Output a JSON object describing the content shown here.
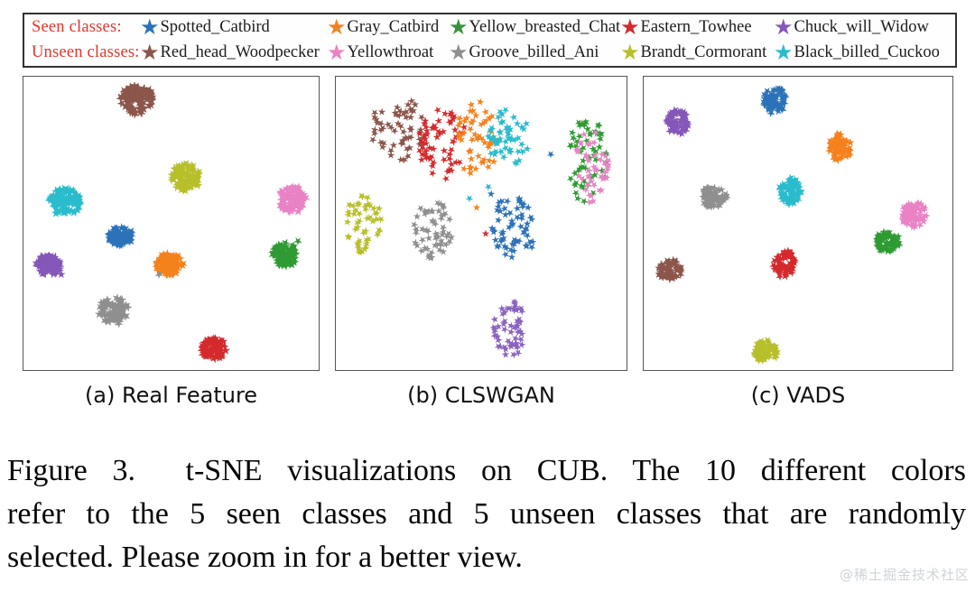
{
  "legend": {
    "label_color": "#e63329",
    "rows": [
      {
        "label": "Seen classes:",
        "entries": [
          {
            "name": "Spotted_Catbird",
            "color": "#2c72b8"
          },
          {
            "name": "Gray_Catbird",
            "color": "#f5811d"
          },
          {
            "name": "Yellow_breasted_Chat",
            "color": "#3a933a"
          },
          {
            "name": "Eastern_Towhee",
            "color": "#d42a2d"
          },
          {
            "name": "Chuck_will_Widow",
            "color": "#8557b8"
          }
        ]
      },
      {
        "label": "Unseen classes:",
        "entries": [
          {
            "name": "Red_head_Woodpecker",
            "color": "#8c564b"
          },
          {
            "name": "Yellowthroat",
            "color": "#e983c5"
          },
          {
            "name": "Groove_billed_Ani",
            "color": "#8f8f8f"
          },
          {
            "name": "Brandt_Cormorant",
            "color": "#b7bf2b"
          },
          {
            "name": "Black_billed_Cuckoo",
            "color": "#2abccd"
          }
        ]
      }
    ]
  },
  "chart_data": [
    {
      "type": "scatter",
      "title": "(a) Real Feature",
      "style": "dense-blobs",
      "clusters": [
        {
          "class": "Red_head_Woodpecker",
          "color": "#8c564b",
          "cx": 38.5,
          "cy": 8.0,
          "rx": 5.8,
          "ry": 5.0,
          "n": 95,
          "size": 13
        },
        {
          "class": "Brandt_Cormorant",
          "color": "#b7bf2b",
          "cx": 55.0,
          "cy": 34.5,
          "rx": 5.0,
          "ry": 4.7,
          "n": 85,
          "size": 13
        },
        {
          "class": "Black_billed_Cuckoo",
          "color": "#2abccd",
          "cx": 14.0,
          "cy": 43.0,
          "rx": 5.4,
          "ry": 4.6,
          "n": 85,
          "size": 13
        },
        {
          "class": "Yellowthroat",
          "color": "#e983c5",
          "cx": 91.0,
          "cy": 42.0,
          "rx": 4.7,
          "ry": 4.5,
          "n": 80,
          "size": 13
        },
        {
          "class": "Spotted_Catbird",
          "color": "#2c72b8",
          "cx": 33.0,
          "cy": 54.5,
          "rx": 4.2,
          "ry": 3.2,
          "n": 70,
          "size": 13
        },
        {
          "class": "Chuck_will_Widow",
          "color": "#8557b8",
          "cx": 8.5,
          "cy": 64.5,
          "rx": 4.2,
          "ry": 3.5,
          "n": 70,
          "size": 13
        },
        {
          "class": "Gray_Catbird",
          "color": "#f5811d",
          "cx": 49.5,
          "cy": 64.0,
          "rx": 4.6,
          "ry": 3.9,
          "n": 80,
          "size": 13
        },
        {
          "class": "Yellow_breasted_Chat",
          "color": "#2f9b33",
          "cx": 88.5,
          "cy": 61.0,
          "rx": 4.3,
          "ry": 4.0,
          "n": 75,
          "size": 13
        },
        {
          "class": "Groove_billed_Ani",
          "color": "#8f8f8f",
          "cx": 30.5,
          "cy": 80.0,
          "rx": 5.0,
          "ry": 4.5,
          "n": 80,
          "size": 13
        },
        {
          "class": "Eastern_Towhee",
          "color": "#d42a2d",
          "cx": 64.5,
          "cy": 93.0,
          "rx": 4.2,
          "ry": 3.8,
          "n": 75,
          "size": 13
        }
      ],
      "outliers": [
        {
          "class": "Groove_billed_Ani",
          "color": "#8f8f8f",
          "x": 46.0,
          "y": 67.5,
          "size": 12
        },
        {
          "class": "Chuck_will_Widow",
          "color": "#8557b8",
          "x": 12.8,
          "y": 67.5,
          "size": 12
        },
        {
          "class": "Yellow_breasted_Chat",
          "color": "#2f9b33",
          "x": 93.0,
          "y": 56.0,
          "size": 12
        }
      ]
    },
    {
      "type": "scatter",
      "title": "(b) CLSWGAN",
      "style": "loose-scatter",
      "clusters": [
        {
          "class": "Red_head_Woodpecker",
          "color": "#8c564b",
          "cx": 21.5,
          "cy": 18.0,
          "rx": 9.5,
          "ry": 11.0,
          "n": 58,
          "size": 11
        },
        {
          "class": "Eastern_Towhee",
          "color": "#d42a2d",
          "cx": 37.0,
          "cy": 23.0,
          "rx": 8.5,
          "ry": 12.0,
          "n": 62,
          "size": 11
        },
        {
          "class": "Gray_Catbird",
          "color": "#f5811d",
          "cx": 48.5,
          "cy": 21.0,
          "rx": 7.5,
          "ry": 13.0,
          "n": 55,
          "size": 11
        },
        {
          "class": "Black_billed_Cuckoo",
          "color": "#2abccd",
          "cx": 59.5,
          "cy": 21.0,
          "rx": 7.5,
          "ry": 10.0,
          "n": 55,
          "size": 11
        },
        {
          "class": "Yellow_breasted_Chat",
          "color": "#2f9b33",
          "cx": 86.5,
          "cy": 29.0,
          "rx": 7.0,
          "ry": 15.0,
          "n": 58,
          "size": 11
        },
        {
          "class": "Yellowthroat",
          "color": "#e983c5",
          "cx": 88.0,
          "cy": 31.0,
          "rx": 6.0,
          "ry": 13.0,
          "n": 45,
          "size": 11
        },
        {
          "class": "Brandt_Cormorant",
          "color": "#b7bf2b",
          "cx": 9.5,
          "cy": 49.5,
          "rx": 6.0,
          "ry": 10.5,
          "n": 50,
          "size": 11
        },
        {
          "class": "Groove_billed_Ani",
          "color": "#8f8f8f",
          "cx": 33.5,
          "cy": 52.5,
          "rx": 7.0,
          "ry": 10.5,
          "n": 55,
          "size": 11
        },
        {
          "class": "Spotted_Catbird",
          "color": "#2c72b8",
          "cx": 61.5,
          "cy": 51.0,
          "rx": 8.0,
          "ry": 11.5,
          "n": 60,
          "size": 11
        },
        {
          "class": "Chuck_will_Widow",
          "color": "#8a63c0",
          "cx": 59.5,
          "cy": 85.5,
          "rx": 5.5,
          "ry": 10.5,
          "n": 55,
          "size": 11
        }
      ],
      "outliers": [
        {
          "class": "Spotted_Catbird",
          "color": "#2c72b8",
          "x": 74.0,
          "y": 26.5,
          "size": 11
        },
        {
          "class": "Eastern_Towhee",
          "color": "#d42a2d",
          "x": 51.5,
          "y": 53.5,
          "size": 11
        },
        {
          "class": "Black_billed_Cuckoo",
          "color": "#2abccd",
          "x": 46.0,
          "y": 41.5,
          "size": 11
        },
        {
          "class": "Gray_Catbird",
          "color": "#f5811d",
          "x": 48.5,
          "y": 44.5,
          "size": 11
        },
        {
          "class": "Black_billed_Cuckoo",
          "color": "#2abccd",
          "x": 52.5,
          "y": 37.5,
          "size": 11
        },
        {
          "class": "Spotted_Catbird",
          "color": "#2c72b8",
          "x": 53.5,
          "y": 40.0,
          "size": 11
        }
      ]
    },
    {
      "type": "scatter",
      "title": "(c) VADS",
      "style": "dense-blobs",
      "clusters": [
        {
          "class": "Spotted_Catbird",
          "color": "#2c72b8",
          "cx": 42.5,
          "cy": 8.0,
          "rx": 3.7,
          "ry": 4.5,
          "n": 70,
          "size": 12
        },
        {
          "class": "Chuck_will_Widow",
          "color": "#8557b8",
          "cx": 11.0,
          "cy": 15.5,
          "rx": 3.5,
          "ry": 4.3,
          "n": 65,
          "size": 12
        },
        {
          "class": "Gray_Catbird",
          "color": "#f5811d",
          "cx": 63.5,
          "cy": 24.0,
          "rx": 3.7,
          "ry": 4.7,
          "n": 65,
          "size": 12
        },
        {
          "class": "Black_billed_Cuckoo",
          "color": "#2abccd",
          "cx": 47.5,
          "cy": 39.0,
          "rx": 3.7,
          "ry": 4.5,
          "n": 65,
          "size": 12
        },
        {
          "class": "Groove_billed_Ani",
          "color": "#8f8f8f",
          "cx": 22.5,
          "cy": 41.0,
          "rx": 4.3,
          "ry": 3.5,
          "n": 65,
          "size": 12
        },
        {
          "class": "Yellowthroat",
          "color": "#e983c5",
          "cx": 87.5,
          "cy": 47.0,
          "rx": 4.1,
          "ry": 4.3,
          "n": 70,
          "size": 12
        },
        {
          "class": "Yellow_breasted_Chat",
          "color": "#2f9b33",
          "cx": 79.0,
          "cy": 56.0,
          "rx": 3.9,
          "ry": 4.1,
          "n": 65,
          "size": 12
        },
        {
          "class": "Eastern_Towhee",
          "color": "#d42a2d",
          "cx": 45.5,
          "cy": 63.5,
          "rx": 3.7,
          "ry": 4.7,
          "n": 65,
          "size": 12
        },
        {
          "class": "Red_head_Woodpecker",
          "color": "#8c564b",
          "cx": 8.5,
          "cy": 66.0,
          "rx": 3.9,
          "ry": 3.7,
          "n": 65,
          "size": 12
        },
        {
          "class": "Brandt_Cormorant",
          "color": "#b7bf2b",
          "cx": 39.5,
          "cy": 93.5,
          "rx": 3.9,
          "ry": 3.7,
          "n": 65,
          "size": 12
        }
      ],
      "outliers": [
        {
          "class": "Groove_billed_Ani",
          "color": "#8f8f8f",
          "x": 27.0,
          "y": 41.0,
          "size": 12
        }
      ]
    }
  ],
  "figure_caption": {
    "lines": [
      "Figure 3.  t-SNE visualizations on CUB. The 10 different colors",
      "refer to the 5 seen classes and 5 unseen classes that are randomly",
      "selected. Please zoom in for a better view."
    ]
  },
  "watermark": "@稀土掘金技术社区"
}
